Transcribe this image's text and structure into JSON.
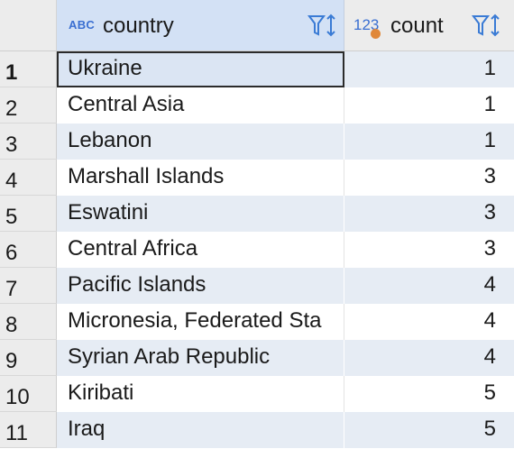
{
  "columns": {
    "country": {
      "type_icon": "ABC",
      "label": "country"
    },
    "count": {
      "type_icon": "123",
      "label": "count"
    }
  },
  "rows": [
    {
      "num": "1",
      "country": "Ukraine",
      "count": "1"
    },
    {
      "num": "2",
      "country": "Central Asia",
      "count": "1"
    },
    {
      "num": "3",
      "country": "Lebanon",
      "count": "1"
    },
    {
      "num": "4",
      "country": "Marshall Islands",
      "count": "3"
    },
    {
      "num": "5",
      "country": "Eswatini",
      "count": "3"
    },
    {
      "num": "6",
      "country": "Central Africa",
      "count": "3"
    },
    {
      "num": "7",
      "country": "Pacific Islands",
      "count": "4"
    },
    {
      "num": "8",
      "country": "Micronesia, Federated Sta",
      "count": "4"
    },
    {
      "num": "9",
      "country": "Syrian Arab Republic",
      "count": "4"
    },
    {
      "num": "10",
      "country": "Kiribati",
      "count": "5"
    },
    {
      "num": "11",
      "country": "Iraq",
      "count": "5"
    }
  ],
  "icons": {
    "filter_sort": "filter-sort-icon",
    "number_type": "number-type-icon",
    "text_type": "text-type-icon"
  },
  "colors": {
    "header_selected": "#d3e1f5",
    "row_alt": "#e6ecf4",
    "type_icon": "#3a6fd1",
    "dot": "#e0883a"
  }
}
